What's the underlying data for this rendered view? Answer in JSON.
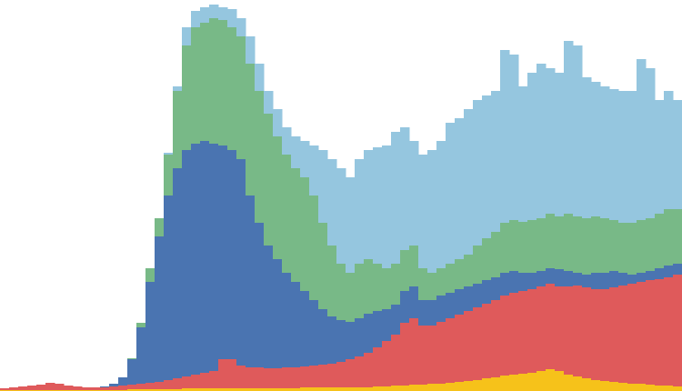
{
  "chart_data": {
    "type": "stacked-bar",
    "categories": [
      null,
      null,
      null,
      null,
      null,
      null,
      null,
      null,
      null,
      null,
      null,
      null,
      null,
      null,
      null,
      null,
      null,
      null,
      null,
      null,
      null,
      null,
      null,
      null,
      null,
      null,
      null,
      null,
      null,
      null,
      null,
      null,
      null,
      null,
      null,
      null,
      null,
      null,
      null,
      null,
      null,
      null,
      null,
      null,
      null,
      null,
      null,
      null,
      null,
      null,
      null,
      null,
      null,
      null,
      null,
      null,
      null,
      null,
      null,
      null,
      null,
      null,
      null,
      null,
      null,
      null,
      null,
      null,
      null,
      null,
      null,
      null,
      null,
      null,
      null
    ],
    "ylim": [
      0,
      430
    ],
    "series": [
      {
        "color": "#f6c21a",
        "values": [
          1,
          1,
          1,
          1,
          1,
          1,
          1,
          1,
          1,
          1,
          1,
          1,
          1,
          1,
          2,
          2,
          2,
          2,
          2,
          2,
          3,
          3,
          3,
          3,
          3,
          3,
          3,
          3,
          3,
          3,
          3,
          3,
          3,
          4,
          4,
          4,
          4,
          4,
          4,
          4,
          4,
          5,
          5,
          6,
          6,
          7,
          7,
          8,
          8,
          9,
          10,
          11,
          12,
          14,
          15,
          17,
          18,
          19,
          20,
          22,
          24,
          22,
          18,
          16,
          14,
          12,
          11,
          10,
          9,
          8,
          8,
          7,
          6,
          6,
          5
        ]
      },
      {
        "color": "#df5a5b",
        "values": [
          2,
          3,
          4,
          5,
          6,
          8,
          7,
          5,
          4,
          3,
          3,
          3,
          4,
          5,
          5,
          6,
          7,
          8,
          10,
          12,
          13,
          15,
          17,
          19,
          32,
          32,
          25,
          23,
          23,
          22,
          22,
          23,
          23,
          23,
          24,
          25,
          26,
          28,
          31,
          34,
          38,
          43,
          50,
          56,
          69,
          73,
          65,
          64,
          68,
          71,
          74,
          77,
          80,
          82,
          85,
          88,
          90,
          91,
          92,
          93,
          94,
          93,
          97,
          100,
          100,
          100,
          101,
          104,
          107,
          110,
          112,
          115,
          117,
          119,
          123
        ]
      },
      {
        "color": "#4a74b1",
        "values": [
          0,
          0,
          0,
          0,
          0,
          0,
          0,
          0,
          0,
          0,
          0,
          1,
          3,
          9,
          28,
          62,
          111,
          160,
          203,
          231,
          249,
          254,
          255,
          250,
          235,
          230,
          227,
          189,
          159,
          135,
          120,
          104,
          94,
          83,
          72,
          61,
          52,
          46,
          41,
          42,
          43,
          40,
          35,
          33,
          35,
          35,
          28,
          28,
          29,
          28,
          28,
          27,
          26,
          26,
          25,
          25,
          24,
          20,
          18,
          17,
          17,
          19,
          17,
          14,
          14,
          18,
          18,
          18,
          14,
          10,
          10,
          10,
          12,
          13,
          12
        ]
      },
      {
        "color": "#78b987",
        "values": [
          0,
          0,
          0,
          0,
          0,
          0,
          0,
          0,
          0,
          0,
          0,
          0,
          0,
          0,
          1,
          5,
          15,
          20,
          45,
          85,
          115,
          128,
          130,
          138,
          138,
          135,
          135,
          145,
          145,
          145,
          135,
          130,
          125,
          125,
          115,
          95,
          78,
          62,
          54,
          60,
          60,
          52,
          45,
          45,
          45,
          45,
          35,
          30,
          30,
          32,
          33,
          35,
          42,
          46,
          50,
          55,
          56,
          56,
          58,
          58,
          60,
          58,
          63,
          62,
          62,
          62,
          60,
          56,
          55,
          57,
          58,
          58,
          60,
          62,
          60
        ]
      },
      {
        "color": "#95c6df",
        "values": [
          0,
          0,
          0,
          0,
          0,
          0,
          0,
          0,
          0,
          0,
          0,
          0,
          0,
          0,
          0,
          0,
          0,
          0,
          2,
          5,
          20,
          18,
          17,
          15,
          14,
          20,
          20,
          30,
          30,
          25,
          30,
          30,
          35,
          40,
          55,
          80,
          95,
          105,
          105,
          115,
          120,
          128,
          135,
          145,
          135,
          115,
          125,
          135,
          140,
          155,
          155,
          160,
          160,
          157,
          155,
          190,
          182,
          149,
          162,
          170,
          160,
          158,
          190,
          188,
          155,
          148,
          145,
          144,
          145,
          145,
          177,
          165,
          125,
          130,
          120
        ]
      }
    ]
  }
}
